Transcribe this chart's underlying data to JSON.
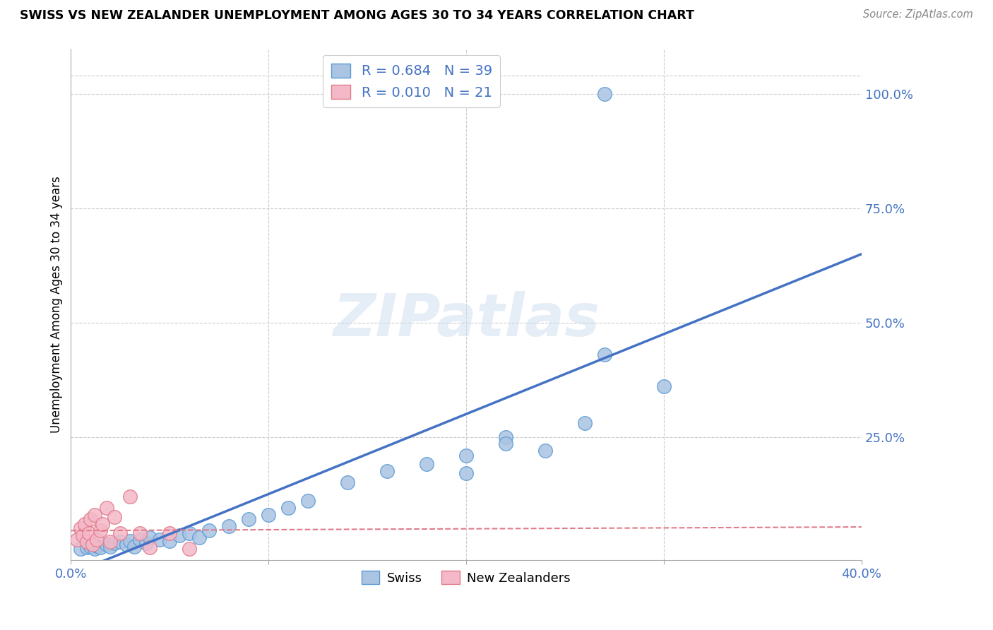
{
  "title": "SWISS VS NEW ZEALANDER UNEMPLOYMENT AMONG AGES 30 TO 34 YEARS CORRELATION CHART",
  "source": "Source: ZipAtlas.com",
  "ylabel": "Unemployment Among Ages 30 to 34 years",
  "xlim": [
    0.0,
    0.4
  ],
  "ylim": [
    -0.02,
    1.1
  ],
  "xticks": [
    0.0,
    0.1,
    0.2,
    0.3,
    0.4
  ],
  "xticklabels": [
    "0.0%",
    "",
    "",
    "",
    "40.0%"
  ],
  "yticks_right": [
    0.25,
    0.5,
    0.75,
    1.0
  ],
  "yticklabels_right": [
    "25.0%",
    "50.0%",
    "75.0%",
    "100.0%"
  ],
  "swiss_color": "#aac4e2",
  "swiss_edge_color": "#5b9bd5",
  "nz_color": "#f4b8c8",
  "nz_edge_color": "#e07b8a",
  "line_blue": "#4472c4",
  "line_pink": "#e07b8a",
  "grid_color": "#cccccc",
  "legend_blue_label": "R = 0.684   N = 39",
  "legend_pink_label": "R = 0.010   N = 21",
  "legend_bottom_swiss": "Swiss",
  "legend_bottom_nz": "New Zealanders",
  "watermark": "ZIPatlas",
  "background_color": "#ffffff",
  "swiss_x": [
    0.005,
    0.008,
    0.01,
    0.012,
    0.013,
    0.015,
    0.018,
    0.02,
    0.022,
    0.025,
    0.028,
    0.03,
    0.032,
    0.035,
    0.038,
    0.04,
    0.045,
    0.05,
    0.055,
    0.06,
    0.065,
    0.07,
    0.08,
    0.09,
    0.1,
    0.11,
    0.12,
    0.14,
    0.16,
    0.18,
    0.2,
    0.22,
    0.24,
    0.26,
    0.2,
    0.22,
    0.27,
    0.3,
    0.27
  ],
  "swiss_y": [
    0.005,
    0.008,
    0.01,
    0.005,
    0.012,
    0.008,
    0.015,
    0.01,
    0.018,
    0.02,
    0.015,
    0.022,
    0.01,
    0.025,
    0.018,
    0.03,
    0.025,
    0.022,
    0.035,
    0.04,
    0.03,
    0.045,
    0.055,
    0.07,
    0.08,
    0.095,
    0.11,
    0.15,
    0.175,
    0.19,
    0.21,
    0.25,
    0.22,
    0.28,
    0.17,
    0.235,
    0.43,
    0.36,
    1.0
  ],
  "nz_x": [
    0.003,
    0.005,
    0.006,
    0.007,
    0.008,
    0.009,
    0.01,
    0.011,
    0.012,
    0.013,
    0.015,
    0.016,
    0.018,
    0.02,
    0.022,
    0.025,
    0.03,
    0.035,
    0.04,
    0.05,
    0.06
  ],
  "nz_y": [
    0.025,
    0.05,
    0.035,
    0.06,
    0.02,
    0.04,
    0.07,
    0.015,
    0.08,
    0.025,
    0.045,
    0.06,
    0.095,
    0.02,
    0.075,
    0.04,
    0.12,
    0.04,
    0.008,
    0.04,
    0.005
  ]
}
